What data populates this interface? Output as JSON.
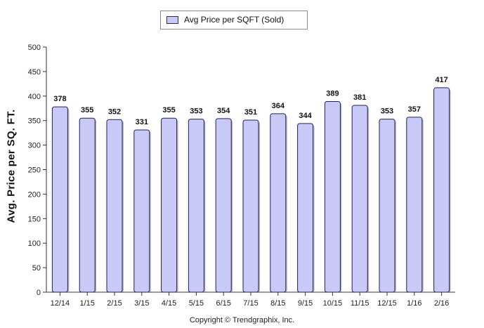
{
  "legend": {
    "label": "Avg Price per SQFT (Sold)",
    "swatch_color": "#c9c9f7"
  },
  "footer": {
    "copyright": "Copyright © Trendgraphix, Inc."
  },
  "chart_data": {
    "type": "bar",
    "categories": [
      "12/14",
      "1/15",
      "2/15",
      "3/15",
      "4/15",
      "5/15",
      "6/15",
      "7/15",
      "8/15",
      "9/15",
      "10/15",
      "11/15",
      "12/15",
      "1/16",
      "2/16"
    ],
    "series": [
      {
        "name": "Avg Price per SQFT (Sold)",
        "values": [
          378,
          355,
          352,
          331,
          355,
          353,
          354,
          351,
          364,
          344,
          389,
          381,
          353,
          357,
          417
        ]
      }
    ],
    "ylabel": "Avg. Price per SQ. FT.",
    "xlabel": "",
    "ylim": [
      0,
      500
    ],
    "yticks": [
      0,
      50,
      100,
      150,
      200,
      250,
      300,
      350,
      400,
      450,
      500
    ],
    "grid": false,
    "legend_position": "top-center",
    "bar_color": "#c9c9f7",
    "bar_edge_color": "#1f1f5a",
    "data_labels": true
  }
}
